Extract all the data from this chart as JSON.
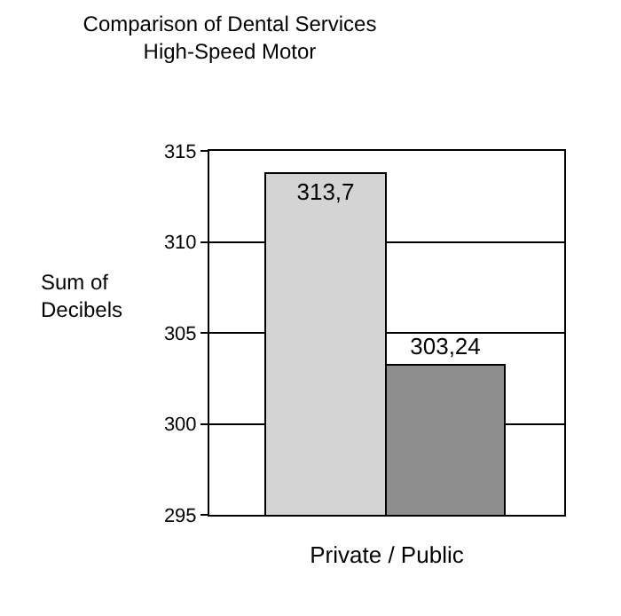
{
  "chart_data": {
    "type": "bar",
    "title": "Comparison of Dental Services\nHigh-Speed Motor",
    "xlabel": "Private / Public",
    "ylabel": "Sum of\nDecibels",
    "categories": [
      null,
      null
    ],
    "values": [
      313.7,
      303.24
    ],
    "colors": [
      "#d4d4d4",
      "#8e8e8e"
    ],
    "value_labels": [
      "313,7",
      "303,24"
    ],
    "ylim": [
      295,
      315
    ],
    "yticks": [
      295,
      300,
      305,
      310,
      315
    ],
    "grid": "y",
    "legend": false
  }
}
